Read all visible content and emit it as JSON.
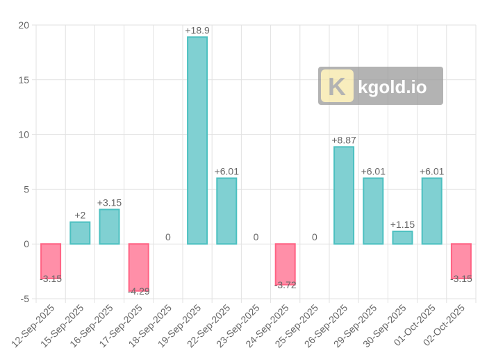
{
  "chart_data": {
    "type": "bar",
    "categories": [
      "12-Sep-2025",
      "15-Sep-2025",
      "16-Sep-2025",
      "17-Sep-2025",
      "18-Sep-2025",
      "19-Sep-2025",
      "22-Sep-2025",
      "23-Sep-2025",
      "24-Sep-2025",
      "25-Sep-2025",
      "26-Sep-2025",
      "29-Sep-2025",
      "30-Sep-2025",
      "01-Oct-2025",
      "02-Oct-2025"
    ],
    "values": [
      -3.15,
      2,
      3.15,
      -4.29,
      0,
      18.9,
      6.01,
      0,
      -3.72,
      0,
      8.87,
      6.01,
      1.15,
      6.01,
      -3.15
    ],
    "data_labels": [
      "-3.15",
      "+2",
      "+3.15",
      "-4.29",
      "0",
      "+18.9",
      "+6.01",
      "0",
      "-3.72",
      "0",
      "+8.87",
      "+6.01",
      "+1.15",
      "+6.01",
      "-3.15"
    ],
    "y_ticks": [
      "-5",
      "0",
      "5",
      "10",
      "15",
      "20"
    ],
    "ylim": [
      -5,
      20
    ],
    "grid": true,
    "colors": {
      "positive_fill": "#80d0d2",
      "positive_border": "#4bc0c0",
      "negative_fill": "#ff8fa8",
      "negative_border": "#ff6384"
    }
  },
  "watermark": {
    "text": "kgold.io",
    "logo_letter": "K"
  }
}
